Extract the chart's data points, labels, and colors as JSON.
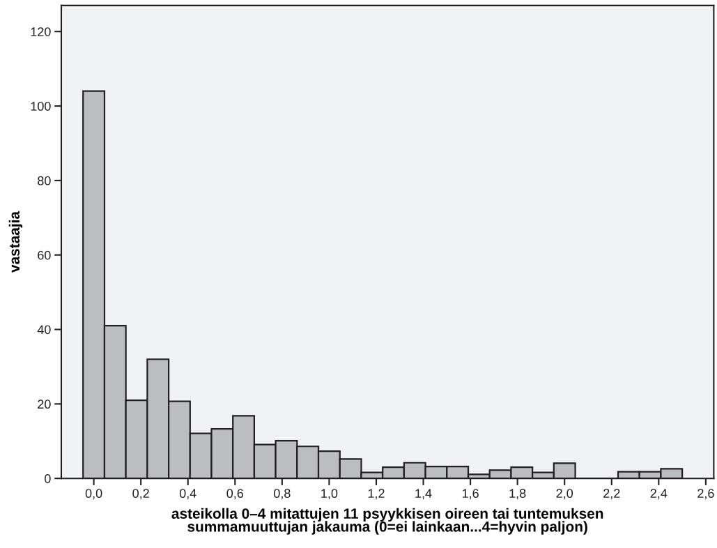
{
  "chart_data": {
    "type": "histogram",
    "xlabel": "asteikolla 0–4 mitattujen 11 psyykkisen oireen tai tuntemuksen\nsummamuuttujan jakauma (0=ei lainkaan...4=hyvin paljon)",
    "ylabel": "vastaajia",
    "bins": [
      -0.0455,
      0.0455,
      0.1364,
      0.2273,
      0.3182,
      0.4091,
      0.5,
      0.5909,
      0.6818,
      0.7727,
      0.8636,
      0.9545,
      1.0455,
      1.1364,
      1.2273,
      1.3182,
      1.4091,
      1.5,
      1.5909,
      1.6818,
      1.7727,
      1.8636,
      1.9545,
      2.0455,
      2.1364,
      2.2273,
      2.3182,
      2.4091,
      2.5
    ],
    "values": [
      104,
      41,
      21,
      32,
      20.7,
      12.1,
      13.3,
      16.8,
      9.1,
      10.1,
      8.6,
      7.3,
      5.2,
      1.6,
      3.0,
      4.2,
      3.2,
      3.2,
      1.1,
      2.2,
      3.0,
      1.6,
      4.1,
      0,
      0,
      1.8,
      1.8,
      2.6
    ],
    "color": "#bcbdc1",
    "xlim": [
      -0.138,
      2.634
    ],
    "ylim": [
      0,
      127
    ],
    "xticks": [
      {
        "value": 0,
        "label": "0,0"
      },
      {
        "value": 0.2,
        "label": "0,2"
      },
      {
        "value": 0.4,
        "label": "0,4"
      },
      {
        "value": 0.6,
        "label": "0,6"
      },
      {
        "value": 0.8,
        "label": "0,8"
      },
      {
        "value": 1.0,
        "label": "1,0"
      },
      {
        "value": 1.2,
        "label": "1,2"
      },
      {
        "value": 1.4,
        "label": "1,4"
      },
      {
        "value": 1.6,
        "label": "1,6"
      },
      {
        "value": 1.8,
        "label": "1,8"
      },
      {
        "value": 2.0,
        "label": "2,0"
      },
      {
        "value": 2.2,
        "label": "2,2"
      },
      {
        "value": 2.4,
        "label": "2,4"
      },
      {
        "value": 2.6,
        "label": "2,6"
      }
    ],
    "yticks": [
      0,
      20,
      40,
      60,
      80,
      100,
      120
    ],
    "grid": false
  }
}
